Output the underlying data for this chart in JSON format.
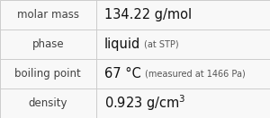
{
  "rows": [
    {
      "label": "molar mass",
      "value": "134.22 g/mol",
      "annotation": ""
    },
    {
      "label": "phase",
      "value": "liquid",
      "annotation": "(at STP)"
    },
    {
      "label": "boiling point",
      "value": "67 °C",
      "annotation": "(measured at 1466 Pa)"
    },
    {
      "label": "density",
      "value": "0.923 g/cm",
      "annotation": "",
      "superscript": "3"
    }
  ],
  "col_split": 0.355,
  "background_color": "#f8f8f8",
  "border_color": "#cccccc",
  "label_fontsize": 8.5,
  "value_fontsize": 10.5,
  "annotation_fontsize": 7.0,
  "label_color": "#404040",
  "value_color": "#111111",
  "annotation_color": "#555555"
}
